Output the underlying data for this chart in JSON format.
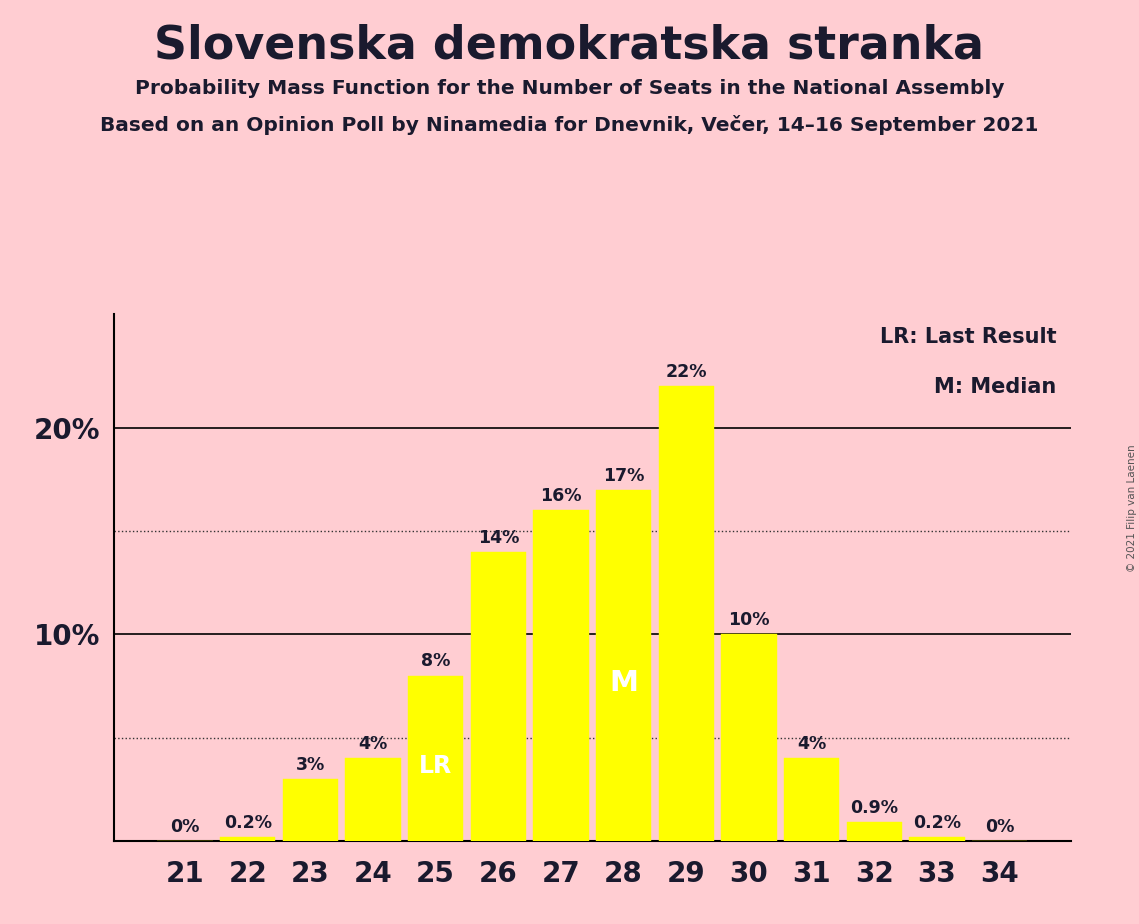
{
  "title": "Slovenska demokratska stranka",
  "subtitle1": "Probability Mass Function for the Number of Seats in the National Assembly",
  "subtitle2": "Based on an Opinion Poll by Ninamedia for Dnevnik, Večer, 14–16 September 2021",
  "copyright": "© 2021 Filip van Laenen",
  "categories": [
    21,
    22,
    23,
    24,
    25,
    26,
    27,
    28,
    29,
    30,
    31,
    32,
    33,
    34
  ],
  "values": [
    0.0,
    0.2,
    3.0,
    4.0,
    8.0,
    14.0,
    16.0,
    17.0,
    22.0,
    10.0,
    4.0,
    0.9,
    0.2,
    0.0
  ],
  "bar_color": "#FFFF00",
  "background_color": "#FFCDD2",
  "label_color_dark": "#1a1a2e",
  "label_color_white": "#FFFFFF",
  "hlines": [
    10.0,
    20.0
  ],
  "dotted_hlines": [
    5.0,
    15.0
  ],
  "lr_seat": 25,
  "lr_label": "LR",
  "median_seat": 28,
  "median_label": "M",
  "legend_lr": "LR: Last Result",
  "legend_m": "M: Median",
  "bar_labels": [
    "0%",
    "0.2%",
    "3%",
    "4%",
    "8%",
    "14%",
    "16%",
    "17%",
    "22%",
    "10%",
    "4%",
    "0.9%",
    "0.2%",
    "0%"
  ],
  "ylim_max": 25.5,
  "bar_width": 0.88
}
